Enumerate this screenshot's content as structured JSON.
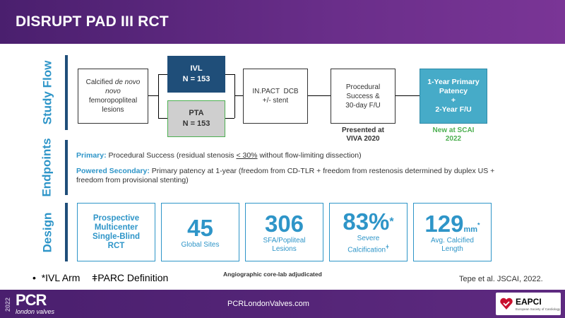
{
  "header": {
    "title": "DISRUPT PAD III RCT"
  },
  "sections": {
    "study_flow": "Study Flow",
    "endpoints": "Endpoints",
    "design": "Design"
  },
  "flow": {
    "lesions": [
      "Calcified",
      "de novo",
      "femoropopliteal",
      "lesions"
    ],
    "ivl": {
      "name": "IVL",
      "n": "N = 153"
    },
    "pta": {
      "name": "PTA",
      "n": "N = 153"
    },
    "dcb": [
      "IN.PACT  DCB",
      "+/- stent"
    ],
    "procedural": [
      "Procedural",
      "Success &",
      "30-day F/U"
    ],
    "primary": [
      "1-Year Primary",
      "Patency",
      "+",
      "2-Year F/U"
    ],
    "presented": [
      "Presented at",
      "VIVA 2020"
    ],
    "new": [
      "New at SCAI",
      "2022"
    ]
  },
  "endpoints": {
    "primary_label": "Primary:",
    "primary_text": " Procedural Success (residual stenosis ",
    "primary_le": "< 30%",
    "primary_text2": " without flow-limiting dissection)",
    "secondary_label": "Powered Secondary:",
    "secondary_text": " Primary patency at 1-year (freedom from CD-TLR + freedom from restenosis determined by duplex US + freedom from provisional stenting)"
  },
  "design": {
    "rct": [
      "Prospective",
      "Multicenter",
      "Single-Blind",
      "RCT"
    ],
    "sites": {
      "value": "45",
      "label": "Global Sites"
    },
    "lesions": {
      "value": "306",
      "label1": "SFA/Popliteal",
      "label2": "Lesions"
    },
    "calc": {
      "value": "83%",
      "mark": "*",
      "label1": "Severe",
      "label2": "Calcification",
      "mark2": "ǂ"
    },
    "length": {
      "value": "129",
      "unit": "mm",
      "mark": "*",
      "label1": "Avg. Calcified",
      "label2": "Length"
    }
  },
  "notes": {
    "bullet": "•",
    "ivl_arm": "*IVL Arm",
    "parc": "PARC Definition",
    "parc_mark": "ǂ",
    "corelab": "Angiographic core-lab adjudicated",
    "citation": "Tepe et al. JSCAI, 2022."
  },
  "footer": {
    "year": "2022",
    "logo": "PCR",
    "logo_sub": "london valves",
    "url": "PCRLondonValves.com",
    "eapci": "EAPCI",
    "eapci_sub": "European Society of Cardiology"
  },
  "colors": {
    "purple": "#5b2a82",
    "accent": "#2e95c8",
    "navy": "#1f4e79",
    "teal": "#46abc8",
    "green": "#4caf50"
  }
}
